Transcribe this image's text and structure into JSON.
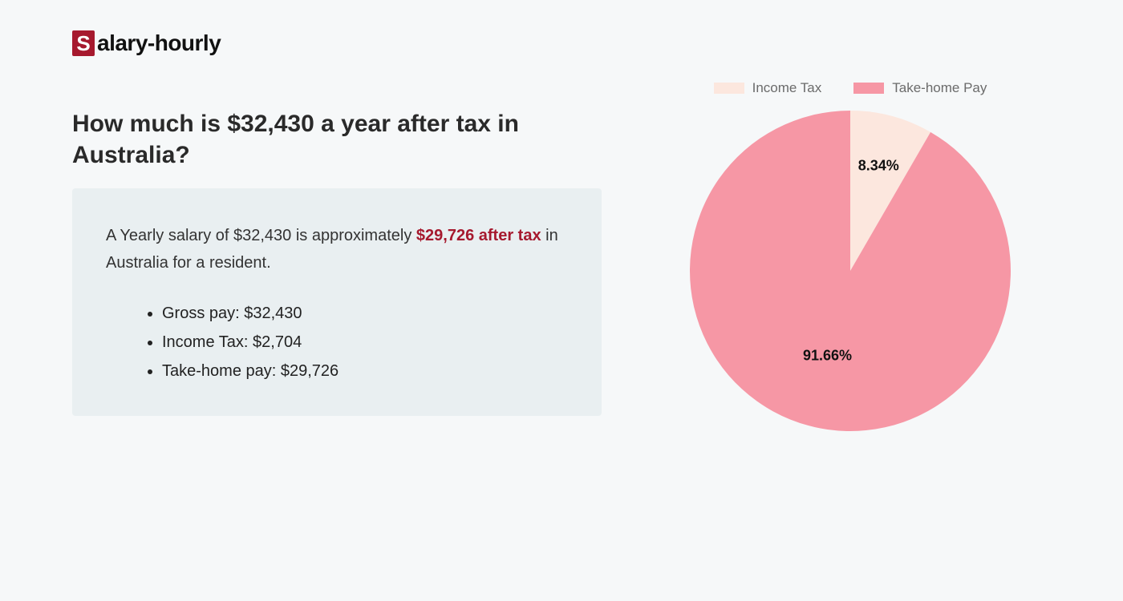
{
  "logo": {
    "s": "S",
    "rest": "alary-hourly"
  },
  "heading": "How much is $32,430 a year after tax in Australia?",
  "summary": {
    "pre": "A Yearly salary of $32,430 is approximately ",
    "highlight": "$29,726 after tax",
    "post": " in Australia for a resident.",
    "bullets": [
      "Gross pay: $32,430",
      "Income Tax: $2,704",
      "Take-home pay: $29,726"
    ]
  },
  "chart": {
    "type": "pie",
    "background_color": "#f6f8f9",
    "radius": 200,
    "start_angle_deg": 0,
    "label_fontsize": 18,
    "label_fontweight": 700,
    "legend": {
      "swatch_width": 38,
      "swatch_height": 14,
      "fontsize": 17,
      "font_color": "#6b6b6b"
    },
    "slices": [
      {
        "label": "Income Tax",
        "value": 8.34,
        "display": "8.34%",
        "color": "#fce7de"
      },
      {
        "label": "Take-home Pay",
        "value": 91.66,
        "display": "91.66%",
        "color": "#f697a5"
      }
    ]
  },
  "colors": {
    "brand_red": "#a6192e",
    "box_bg": "#e9eff1",
    "page_bg": "#f6f8f9"
  }
}
